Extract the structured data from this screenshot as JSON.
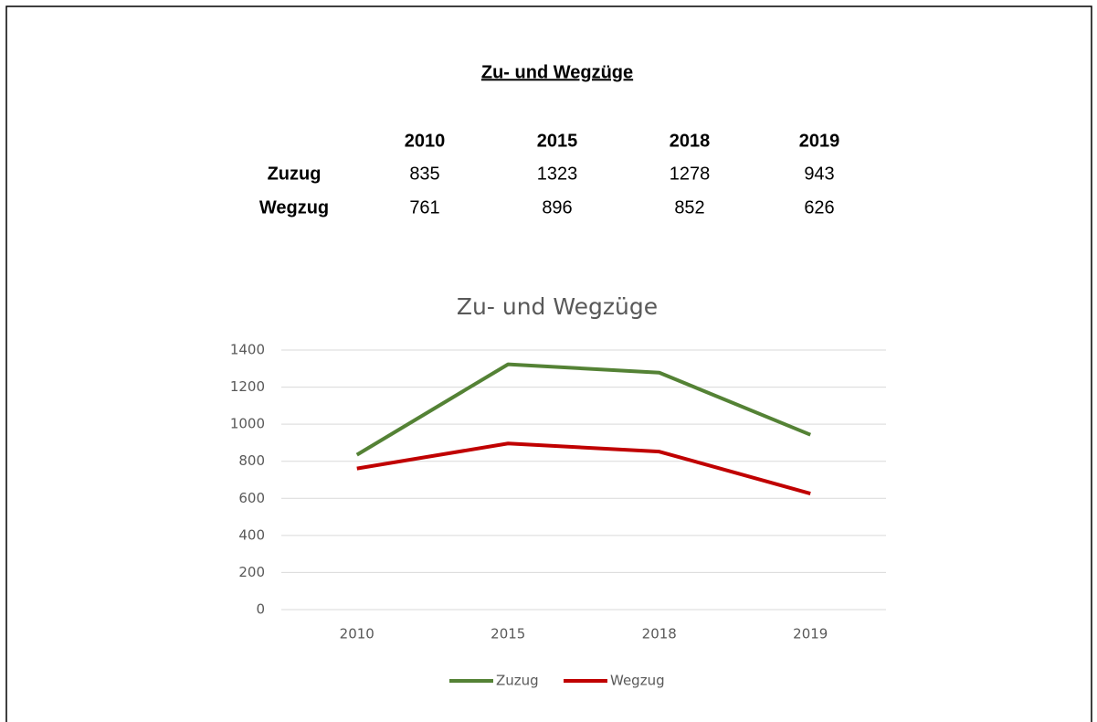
{
  "header": {
    "title": "Zu- und Wegzüge"
  },
  "table": {
    "columns": [
      "2010",
      "2015",
      "2018",
      "2019"
    ],
    "rows": [
      [
        "Zuzug",
        835,
        1323,
        1278,
        943
      ],
      [
        "Wegzug",
        761,
        896,
        852,
        626
      ]
    ]
  },
  "chart_data": {
    "type": "line",
    "title": "Zu- und Wegzüge",
    "categories": [
      "2010",
      "2015",
      "2018",
      "2019"
    ],
    "series": [
      {
        "name": "Zuzug",
        "color": "#548235",
        "values": [
          835,
          1323,
          1278,
          943
        ]
      },
      {
        "name": "Wegzug",
        "color": "#c00000",
        "values": [
          761,
          896,
          852,
          626
        ]
      }
    ],
    "ylim": [
      0,
      1400
    ],
    "yticks": [
      0,
      200,
      400,
      600,
      800,
      1000,
      1200,
      1400
    ],
    "grid": true,
    "legend": "bottom"
  }
}
